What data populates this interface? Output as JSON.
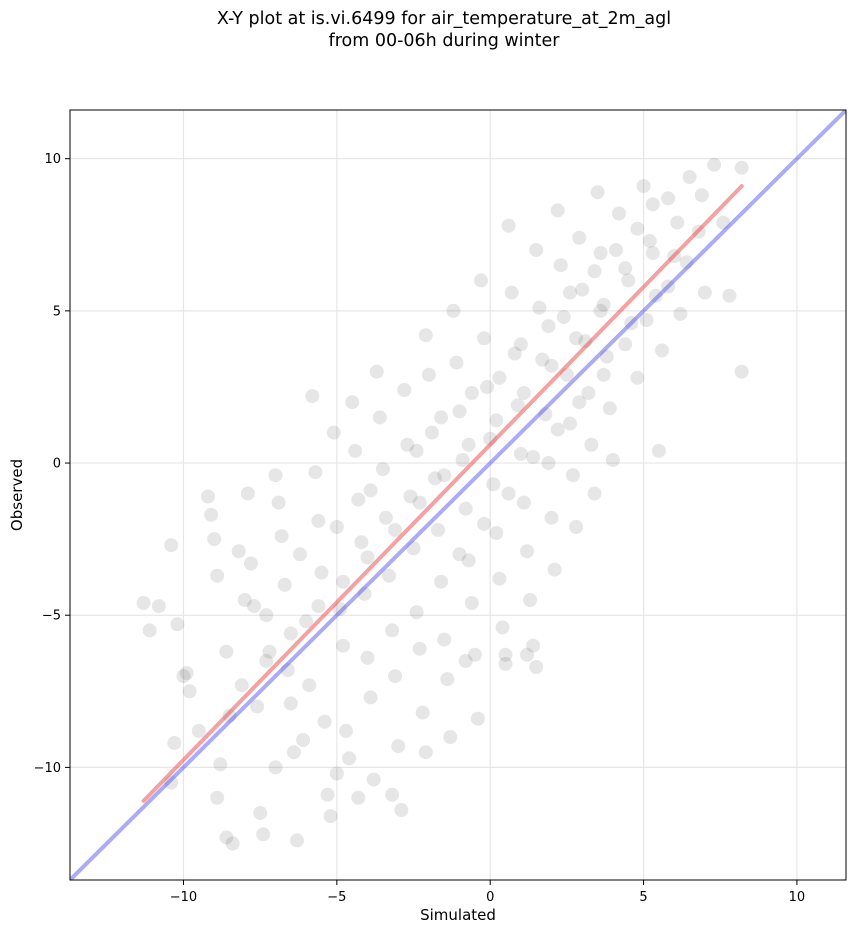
{
  "chart_data": {
    "type": "scatter",
    "title": "X-Y plot at is.vi.6499 for air_temperature_at_2m_agl",
    "subtitle": "from 00-06h during winter",
    "xlabel": "Simulated",
    "ylabel": "Observed",
    "xlim": [
      -13.7,
      11.6
    ],
    "ylim": [
      -13.7,
      11.6
    ],
    "xticks": [
      -10,
      -5,
      0,
      5,
      10
    ],
    "yticks": [
      -10,
      -5,
      0,
      5,
      10
    ],
    "xtick_labels": [
      "−10",
      "−5",
      "0",
      "5",
      "10"
    ],
    "ytick_labels": [
      "−10",
      "−5",
      "0",
      "5",
      "10"
    ],
    "grid": true,
    "point_color": "#555555",
    "point_opacity": 0.15,
    "lines": [
      {
        "kind": "fit",
        "color": "#ee4444",
        "opacity": 0.5,
        "x": [
          -11.3,
          8.2
        ],
        "y": [
          -11.1,
          9.1
        ]
      },
      {
        "kind": "identity",
        "color": "#4444ee",
        "opacity": 0.45,
        "x": [
          -13.7,
          11.6
        ],
        "y": [
          -13.7,
          11.6
        ]
      }
    ],
    "points": [
      [
        -11.3,
        -4.6
      ],
      [
        -11.1,
        -5.5
      ],
      [
        -10.8,
        -4.7
      ],
      [
        -10.4,
        -2.7
      ],
      [
        -10.2,
        -5.3
      ],
      [
        -10.0,
        -7.0
      ],
      [
        -10.3,
        -9.2
      ],
      [
        -10.4,
        -10.5
      ],
      [
        -9.8,
        -7.5
      ],
      [
        -9.5,
        -8.8
      ],
      [
        -9.2,
        -1.1
      ],
      [
        -9.1,
        -1.7
      ],
      [
        -9.0,
        -2.5
      ],
      [
        -8.9,
        -3.7
      ],
      [
        -8.8,
        -9.9
      ],
      [
        -8.6,
        -6.2
      ],
      [
        -8.5,
        -8.3
      ],
      [
        -8.6,
        -12.3
      ],
      [
        -8.4,
        -12.5
      ],
      [
        -8.2,
        -2.9
      ],
      [
        -8.0,
        -4.5
      ],
      [
        -7.9,
        -1.0
      ],
      [
        -7.8,
        -3.3
      ],
      [
        -7.7,
        -4.7
      ],
      [
        -7.6,
        -8.0
      ],
      [
        -7.5,
        -11.5
      ],
      [
        -7.4,
        -12.2
      ],
      [
        -7.3,
        -5.0
      ],
      [
        -7.2,
        -6.2
      ],
      [
        -7.0,
        -0.4
      ],
      [
        -6.9,
        -1.3
      ],
      [
        -6.8,
        -2.4
      ],
      [
        -6.7,
        -4.0
      ],
      [
        -6.6,
        -6.8
      ],
      [
        -6.5,
        -7.9
      ],
      [
        -6.4,
        -9.5
      ],
      [
        -6.3,
        -12.4
      ],
      [
        -6.2,
        -3.0
      ],
      [
        -6.0,
        -5.2
      ],
      [
        -5.9,
        -7.3
      ],
      [
        -5.8,
        2.2
      ],
      [
        -5.7,
        -0.3
      ],
      [
        -5.6,
        -1.9
      ],
      [
        -5.5,
        -3.6
      ],
      [
        -5.4,
        -8.5
      ],
      [
        -5.3,
        -10.9
      ],
      [
        -5.2,
        -11.6
      ],
      [
        -5.1,
        1.0
      ],
      [
        -5.0,
        -2.1
      ],
      [
        -4.9,
        -4.8
      ],
      [
        -4.8,
        -6.0
      ],
      [
        -4.7,
        -8.8
      ],
      [
        -4.6,
        -9.7
      ],
      [
        -4.5,
        2.0
      ],
      [
        -4.4,
        0.4
      ],
      [
        -4.3,
        -1.2
      ],
      [
        -4.2,
        -2.6
      ],
      [
        -4.1,
        -4.3
      ],
      [
        -4.0,
        -6.4
      ],
      [
        -3.9,
        -7.7
      ],
      [
        -3.8,
        -10.4
      ],
      [
        -3.7,
        3.0
      ],
      [
        -3.6,
        1.5
      ],
      [
        -3.5,
        -0.2
      ],
      [
        -3.4,
        -1.8
      ],
      [
        -3.3,
        -3.7
      ],
      [
        -3.2,
        -5.5
      ],
      [
        -3.1,
        -7.0
      ],
      [
        -3.0,
        -9.3
      ],
      [
        -2.9,
        -11.4
      ],
      [
        -2.8,
        2.4
      ],
      [
        -2.7,
        0.6
      ],
      [
        -2.6,
        -1.1
      ],
      [
        -2.5,
        -2.8
      ],
      [
        -2.4,
        -4.9
      ],
      [
        -2.3,
        -6.1
      ],
      [
        -2.2,
        -8.2
      ],
      [
        -2.1,
        4.2
      ],
      [
        -2.0,
        2.9
      ],
      [
        -1.9,
        1.0
      ],
      [
        -1.8,
        -0.5
      ],
      [
        -1.7,
        -2.2
      ],
      [
        -1.6,
        -3.9
      ],
      [
        -1.5,
        -5.8
      ],
      [
        -1.4,
        -7.1
      ],
      [
        -1.3,
        -9.0
      ],
      [
        -1.2,
        5.0
      ],
      [
        -1.1,
        3.3
      ],
      [
        -1.0,
        1.7
      ],
      [
        -0.9,
        0.1
      ],
      [
        -0.8,
        -1.5
      ],
      [
        -0.7,
        -3.2
      ],
      [
        -0.6,
        -4.6
      ],
      [
        -0.5,
        -6.3
      ],
      [
        -0.4,
        -8.4
      ],
      [
        -0.3,
        6.0
      ],
      [
        -0.2,
        4.1
      ],
      [
        -0.1,
        2.5
      ],
      [
        0.0,
        0.8
      ],
      [
        0.1,
        -0.7
      ],
      [
        0.2,
        -2.3
      ],
      [
        0.3,
        -3.8
      ],
      [
        0.4,
        -5.4
      ],
      [
        0.5,
        -6.6
      ],
      [
        0.6,
        7.8
      ],
      [
        0.7,
        5.6
      ],
      [
        0.8,
        3.6
      ],
      [
        0.9,
        1.9
      ],
      [
        1.0,
        0.3
      ],
      [
        1.1,
        -1.3
      ],
      [
        1.2,
        -2.9
      ],
      [
        1.3,
        -4.5
      ],
      [
        1.4,
        -6.0
      ],
      [
        1.5,
        7.0
      ],
      [
        1.6,
        5.1
      ],
      [
        1.7,
        3.4
      ],
      [
        1.8,
        1.6
      ],
      [
        1.9,
        0.0
      ],
      [
        2.0,
        -1.8
      ],
      [
        2.1,
        -3.5
      ],
      [
        2.2,
        8.3
      ],
      [
        2.3,
        6.5
      ],
      [
        2.4,
        4.8
      ],
      [
        2.5,
        2.9
      ],
      [
        2.6,
        1.3
      ],
      [
        2.7,
        -0.4
      ],
      [
        2.8,
        -2.1
      ],
      [
        2.9,
        7.4
      ],
      [
        3.0,
        5.7
      ],
      [
        3.1,
        4.0
      ],
      [
        3.2,
        2.3
      ],
      [
        3.3,
        0.6
      ],
      [
        3.4,
        -1.0
      ],
      [
        3.5,
        8.9
      ],
      [
        3.6,
        6.9
      ],
      [
        3.7,
        5.2
      ],
      [
        3.8,
        3.5
      ],
      [
        3.9,
        1.8
      ],
      [
        4.0,
        0.1
      ],
      [
        4.2,
        8.2
      ],
      [
        4.4,
        6.4
      ],
      [
        4.6,
        4.6
      ],
      [
        4.8,
        2.8
      ],
      [
        5.0,
        9.1
      ],
      [
        5.2,
        7.3
      ],
      [
        5.4,
        5.5
      ],
      [
        5.6,
        3.7
      ],
      [
        5.8,
        8.7
      ],
      [
        6.0,
        6.8
      ],
      [
        6.2,
        4.9
      ],
      [
        6.5,
        9.4
      ],
      [
        6.8,
        7.6
      ],
      [
        7.0,
        5.6
      ],
      [
        7.3,
        9.8
      ],
      [
        7.6,
        7.9
      ],
      [
        7.8,
        5.5
      ],
      [
        8.2,
        3.0
      ],
      [
        8.2,
        9.7
      ],
      [
        5.5,
        0.4
      ],
      [
        -9.9,
        -6.9
      ],
      [
        -8.9,
        -11.0
      ],
      [
        -7.0,
        -10.0
      ],
      [
        -6.1,
        -9.1
      ],
      [
        -5.0,
        -10.2
      ],
      [
        -4.3,
        -11.0
      ],
      [
        -3.2,
        -10.9
      ],
      [
        -2.1,
        -9.5
      ],
      [
        -0.8,
        -6.5
      ],
      [
        0.5,
        -6.3
      ],
      [
        1.2,
        -6.3
      ],
      [
        1.5,
        -6.7
      ],
      [
        -3.9,
        -0.9
      ],
      [
        -2.4,
        0.4
      ],
      [
        -1.6,
        1.5
      ],
      [
        -0.6,
        2.3
      ],
      [
        0.3,
        2.8
      ],
      [
        1.0,
        3.9
      ],
      [
        1.9,
        4.5
      ],
      [
        2.6,
        5.6
      ],
      [
        3.4,
        6.3
      ],
      [
        4.1,
        7.0
      ],
      [
        4.8,
        7.7
      ],
      [
        5.3,
        8.5
      ],
      [
        -1.0,
        -3.0
      ],
      [
        -0.2,
        -2.0
      ],
      [
        0.6,
        -1.0
      ],
      [
        1.4,
        0.2
      ],
      [
        2.2,
        1.1
      ],
      [
        2.9,
        2.0
      ],
      [
        3.7,
        2.9
      ],
      [
        4.4,
        3.9
      ],
      [
        5.1,
        4.7
      ],
      [
        5.8,
        5.8
      ],
      [
        6.4,
        6.6
      ],
      [
        -8.1,
        -7.3
      ],
      [
        -7.3,
        -6.5
      ],
      [
        -6.5,
        -5.6
      ],
      [
        -5.6,
        -4.7
      ],
      [
        -4.8,
        -3.9
      ],
      [
        -4.0,
        -3.1
      ],
      [
        -3.1,
        -2.2
      ],
      [
        -2.3,
        -1.3
      ],
      [
        -1.5,
        -0.4
      ],
      [
        -0.7,
        0.6
      ],
      [
        0.2,
        1.4
      ],
      [
        1.1,
        2.3
      ],
      [
        2.0,
        3.2
      ],
      [
        2.8,
        4.1
      ],
      [
        3.6,
        5.0
      ],
      [
        4.5,
        6.0
      ],
      [
        5.3,
        6.9
      ],
      [
        6.1,
        7.9
      ],
      [
        6.9,
        8.8
      ]
    ]
  }
}
